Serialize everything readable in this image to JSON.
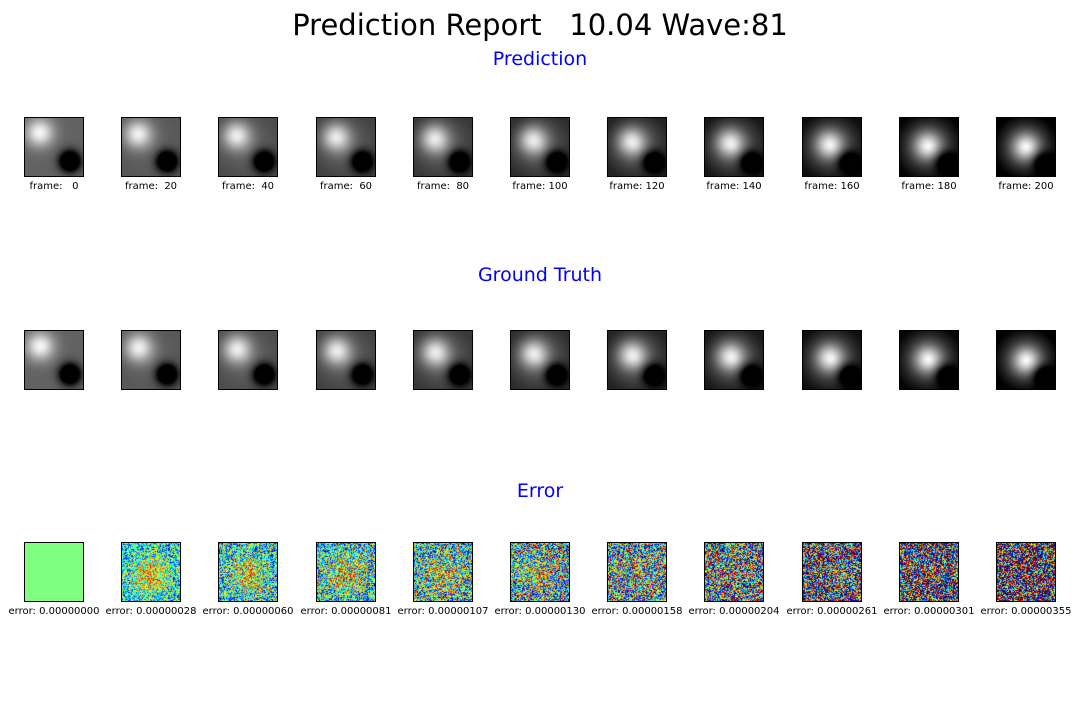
{
  "title": "Prediction Report   10.04 Wave:81",
  "sections": {
    "prediction": "Prediction",
    "ground_truth": "Ground Truth",
    "error": "Error"
  },
  "colors": {
    "section_title": "#0000ff",
    "title": "#000000"
  },
  "chart_data": {
    "type": "heatmap",
    "frames": [
      0,
      20,
      40,
      60,
      80,
      100,
      120,
      140,
      160,
      180,
      200
    ],
    "frame_labels": [
      "frame:   0",
      "frame:  20",
      "frame:  40",
      "frame:  60",
      "frame:  80",
      "frame: 100",
      "frame: 120",
      "frame: 140",
      "frame: 160",
      "frame: 180",
      "frame: 200"
    ],
    "errors": [
      0.0,
      2.8e-07,
      6e-07,
      8.1e-07,
      1.07e-06,
      1.3e-06,
      1.58e-06,
      2.04e-06,
      2.61e-06,
      3.01e-06,
      3.55e-06
    ],
    "error_labels": [
      "error: 0.00000000",
      "error: 0.00000028",
      "error: 0.00000060",
      "error: 0.00000081",
      "error: 0.00000107",
      "error: 0.00000130",
      "error: 0.00000158",
      "error: 0.00000204",
      "error: 0.00000261",
      "error: 0.00000301",
      "error: 0.00000355"
    ],
    "prediction_colormap": "gray",
    "error_colormap": "jet"
  }
}
